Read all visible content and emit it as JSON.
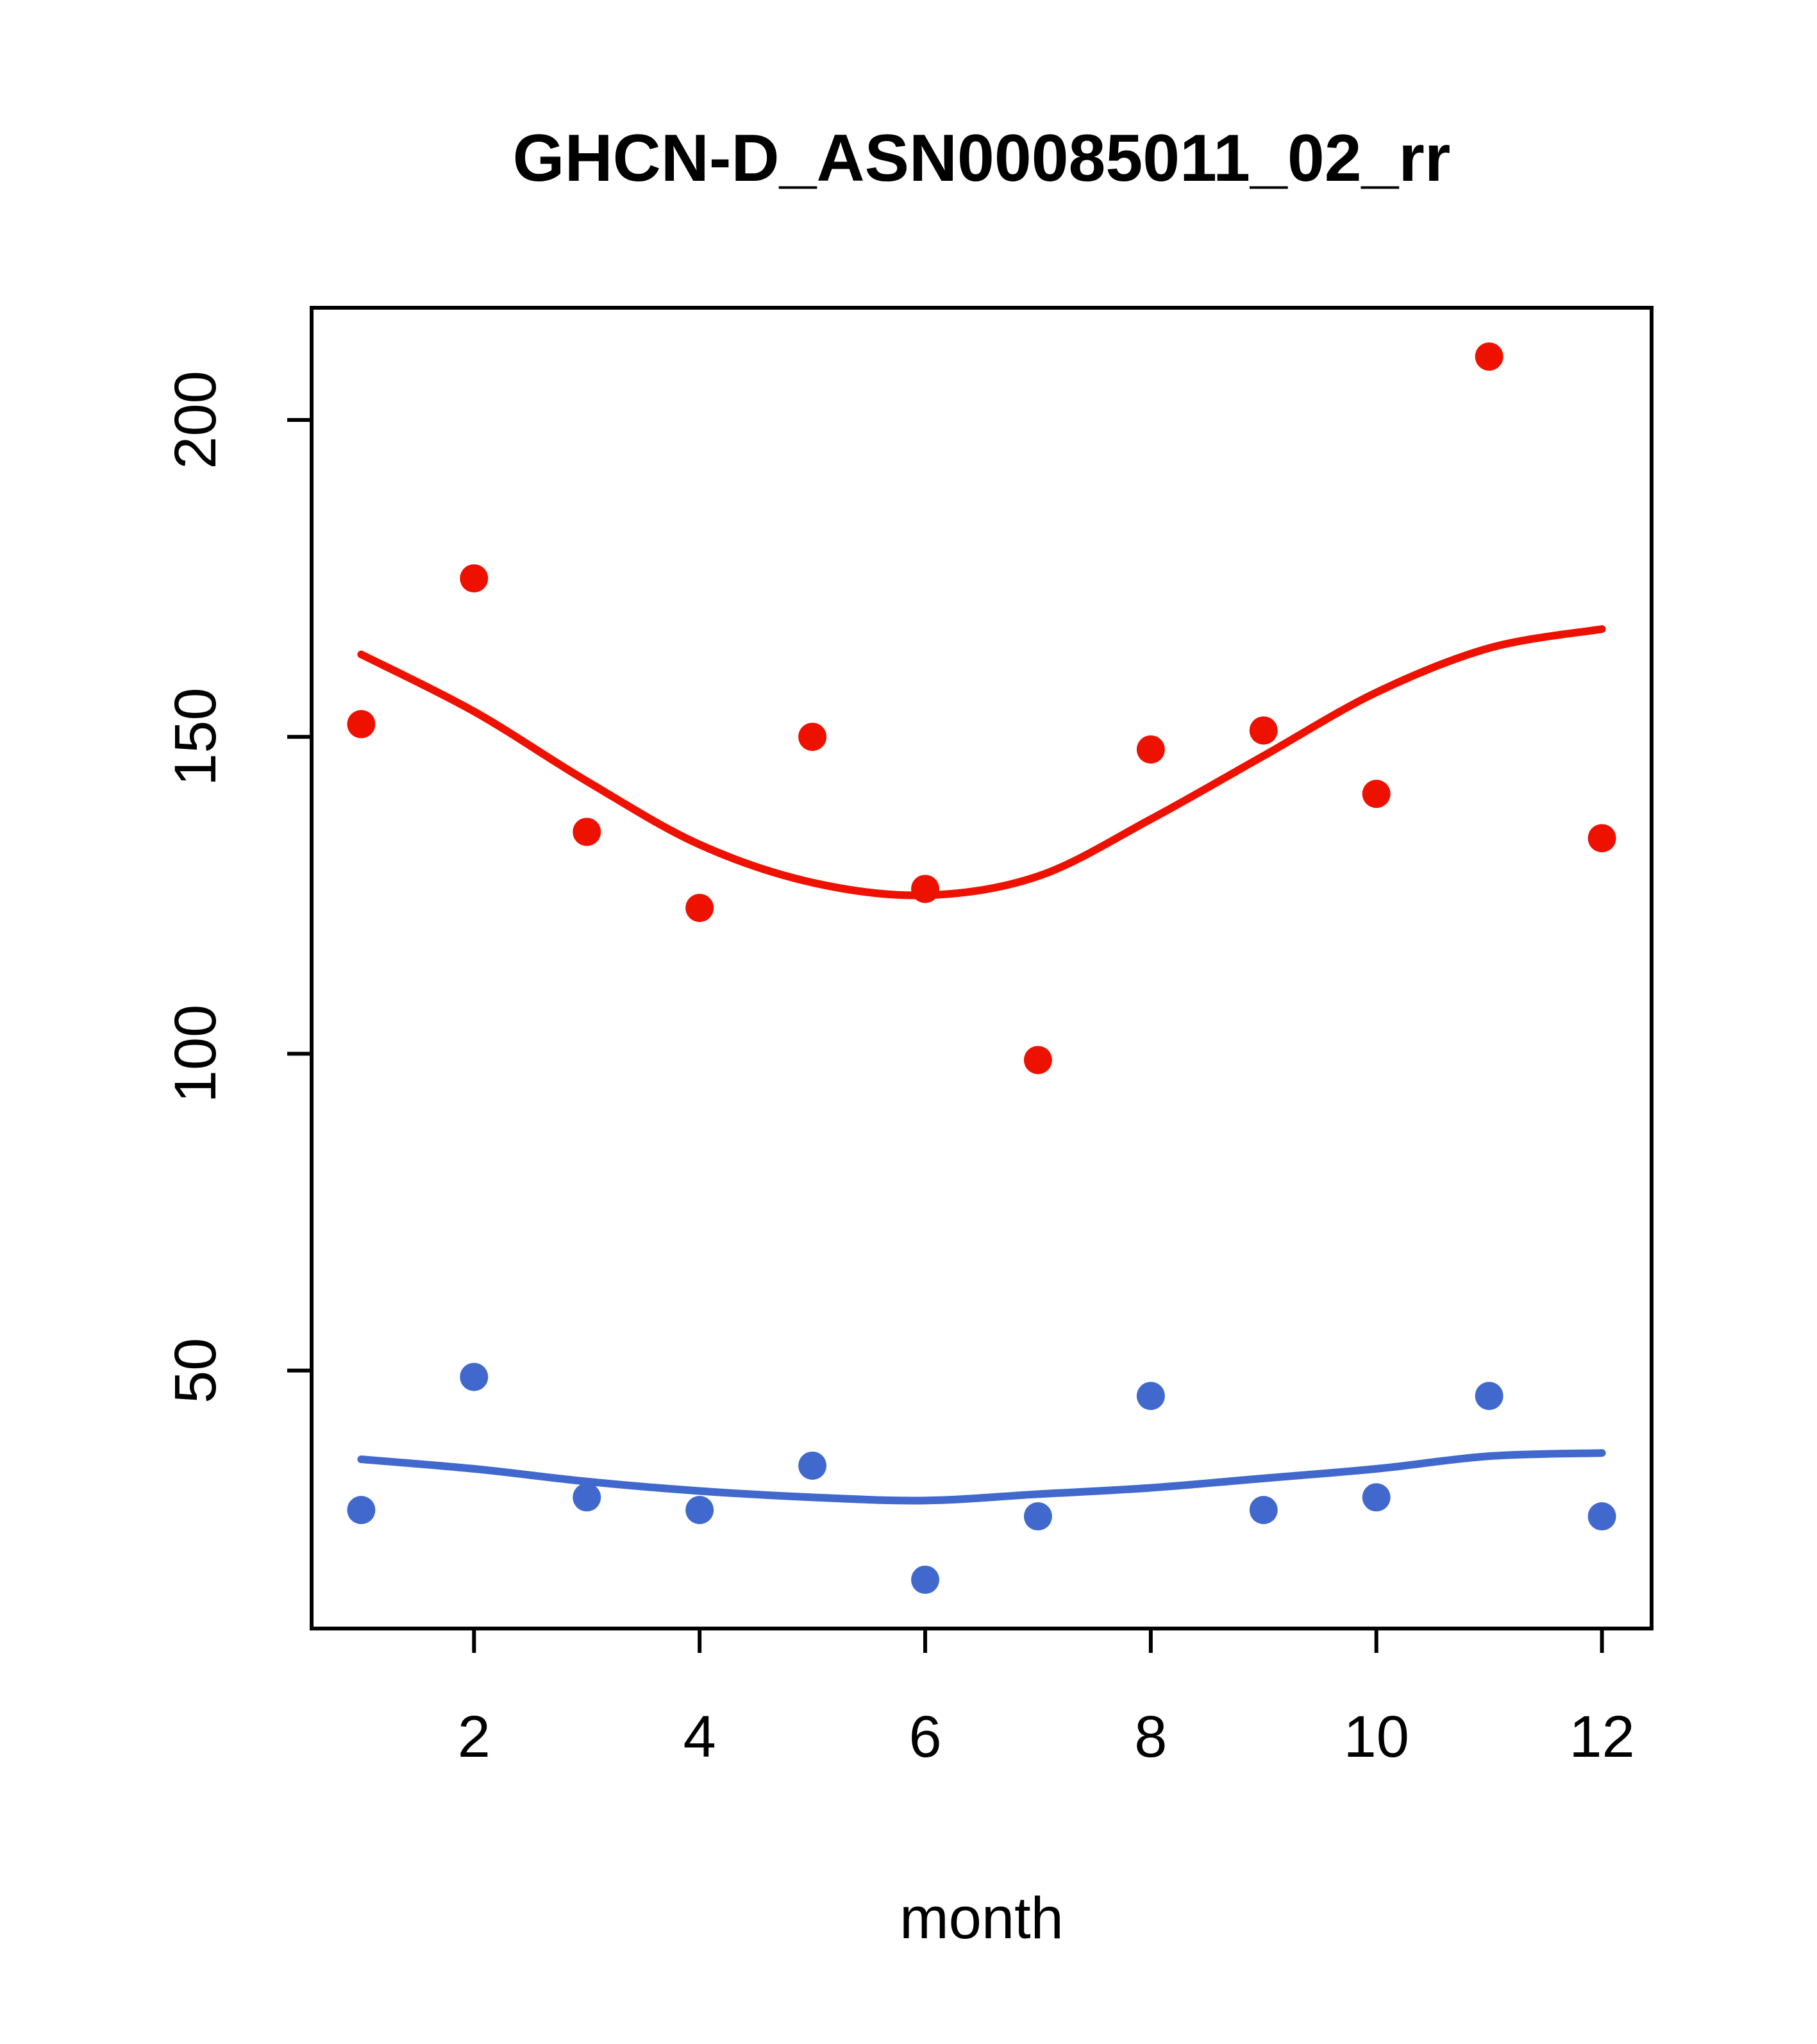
{
  "chart_data": {
    "type": "scatter",
    "title": "GHCN-D_ASN00085011_02_rr",
    "xlabel": "month",
    "ylabel": "",
    "x": [
      1,
      2,
      3,
      4,
      5,
      6,
      7,
      8,
      9,
      10,
      11,
      12
    ],
    "x_ticks": [
      2,
      4,
      6,
      8,
      10,
      12
    ],
    "y_ticks": [
      50,
      100,
      150,
      200
    ],
    "xlim": [
      0.56,
      12.44
    ],
    "ylim": [
      9.3,
      217.7
    ],
    "grid": false,
    "legend": "none",
    "colors": {
      "red_series": "#ee1100",
      "blue_series": "#4169cd",
      "axis": "#000000",
      "background": "#ffffff"
    },
    "series": [
      {
        "name": "red-monthly-points",
        "kind": "points",
        "color": "#ee1100",
        "values": [
          152,
          175,
          135,
          123,
          150,
          126,
          99,
          148,
          151,
          141,
          210,
          134
        ]
      },
      {
        "name": "red-smooth-line",
        "kind": "line",
        "color": "#ee1100",
        "values": [
          163,
          154,
          143,
          133,
          127,
          125,
          128,
          137,
          147,
          157,
          164,
          167
        ]
      },
      {
        "name": "blue-monthly-points",
        "kind": "points",
        "color": "#4169cd",
        "values": [
          28,
          49,
          30,
          28,
          35,
          17,
          27,
          46,
          28,
          30,
          46,
          27
        ]
      },
      {
        "name": "blue-smooth-line",
        "kind": "line",
        "color": "#4169cd",
        "values": [
          36,
          34.5,
          32.5,
          31,
          30,
          29.5,
          30.5,
          31.5,
          33,
          34.5,
          36.5,
          37
        ]
      }
    ]
  }
}
